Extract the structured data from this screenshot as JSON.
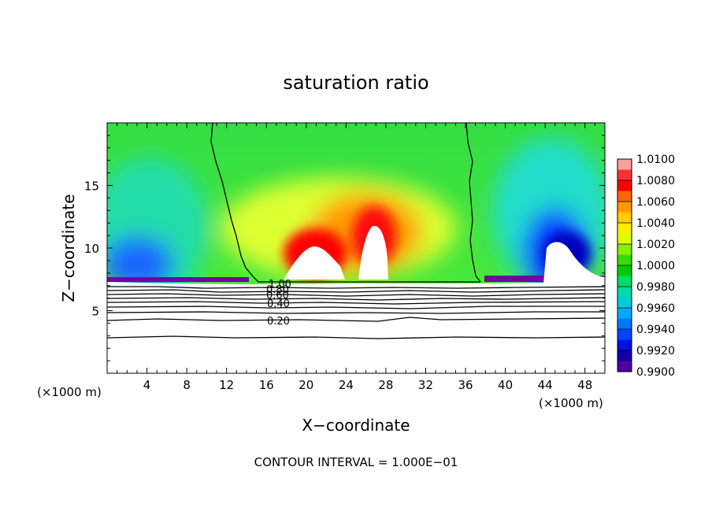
{
  "chart_data": {
    "type": "heatmap",
    "title": "saturation ratio",
    "xlabel": "X−coordinate",
    "ylabel": "Z−coordinate",
    "x_unit_left": "(×1000 m)",
    "x_unit_right": "(×1000 m)",
    "xlim": [
      0,
      50
    ],
    "ylim": [
      0,
      20
    ],
    "x_ticks": [
      4,
      8,
      12,
      16,
      20,
      24,
      28,
      32,
      36,
      40,
      44,
      48
    ],
    "y_ticks": [
      5,
      10,
      15
    ],
    "footer": "CONTOUR INTERVAL = 1.000E−01",
    "colorbar": {
      "min": 0.99,
      "max": 1.01,
      "labels": [
        "1.0100",
        "1.0080",
        "1.0060",
        "1.0040",
        "1.0020",
        "1.0000",
        "0.9980",
        "0.9960",
        "0.9940",
        "0.9920",
        "0.9900"
      ]
    },
    "contour_labels": [
      "1.00",
      "0.80",
      "0.60",
      "0.40",
      "0.20"
    ],
    "colors": {
      "high": "#ff0000",
      "mid": "#00cc00",
      "low": "#0000cc",
      "min": "#6a0096",
      "max": "#f8a0a0"
    }
  }
}
